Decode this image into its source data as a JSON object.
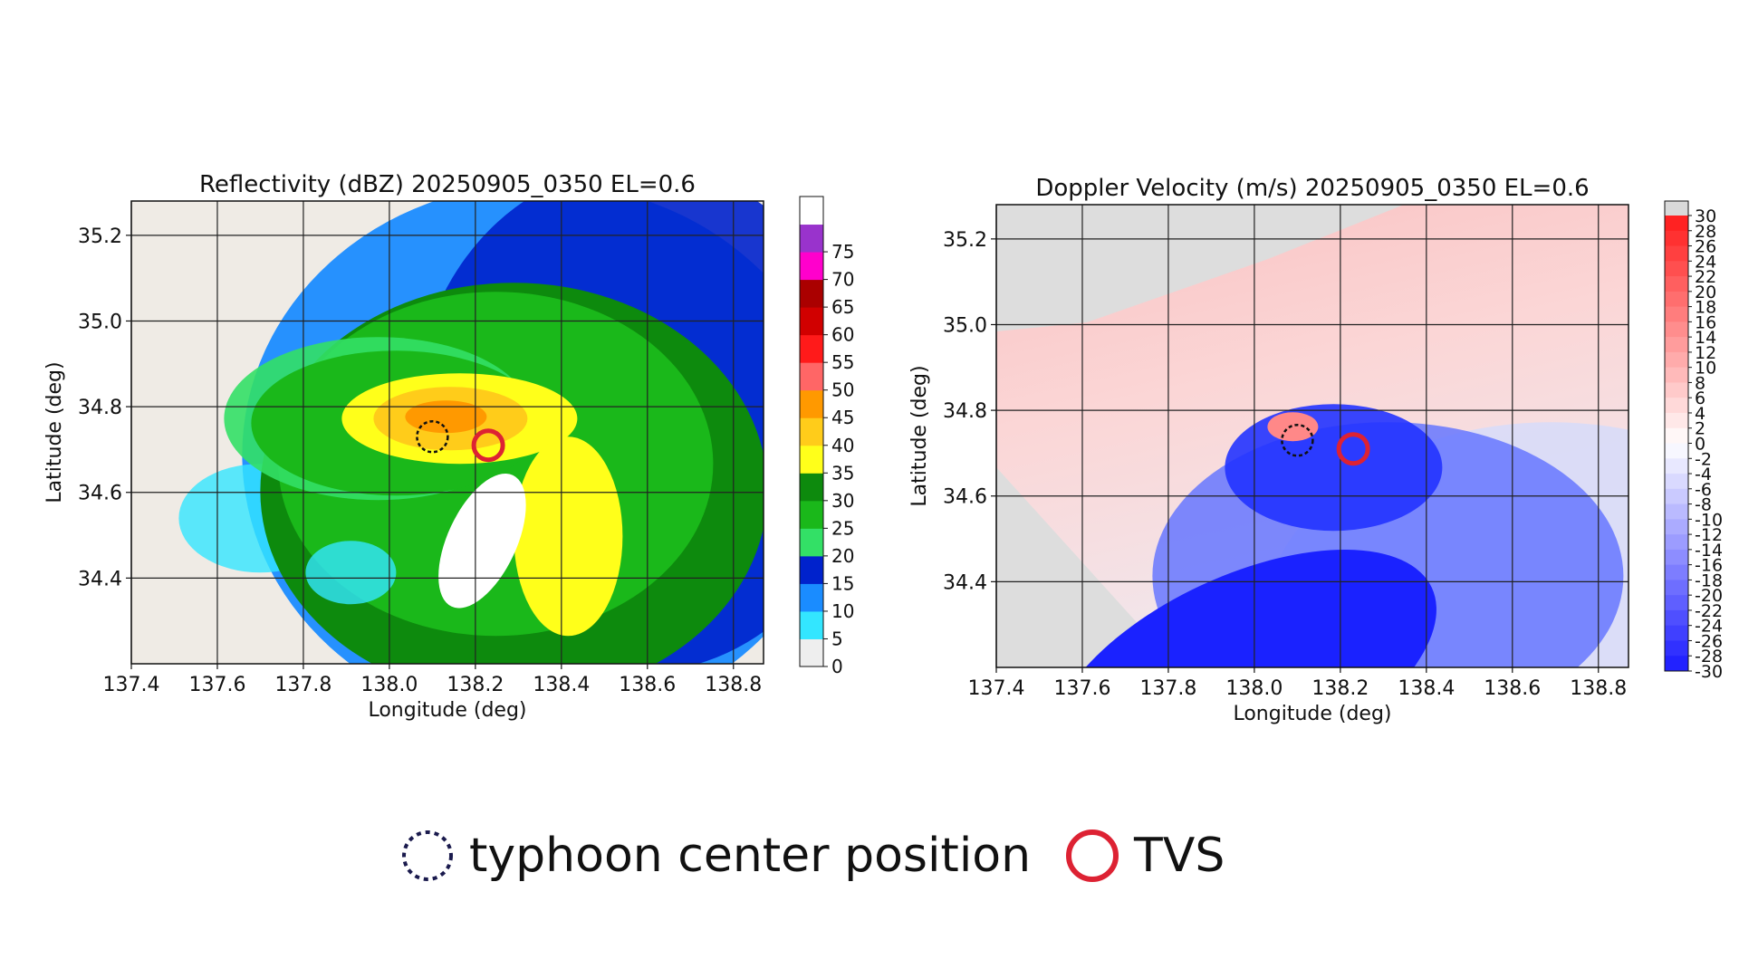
{
  "chart_data": [
    {
      "type": "heatmap",
      "title": "Reflectivity (dBZ) 20250905_0350 EL=0.6",
      "xlabel": "Longitude (deg)",
      "ylabel": "Latitude (deg)",
      "xlim": [
        137.4,
        138.87
      ],
      "ylim": [
        34.2,
        35.28
      ],
      "xticks": [
        137.4,
        137.6,
        137.8,
        138.0,
        138.2,
        138.4,
        138.6,
        138.8
      ],
      "xtick_labels": [
        "137.4",
        "137.6",
        "137.8",
        "138.0",
        "138.2",
        "138.4",
        "138.6",
        "138.8"
      ],
      "yticks": [
        34.4,
        34.6,
        34.8,
        35.0,
        35.2
      ],
      "ytick_labels": [
        "34.4",
        "34.6",
        "34.8",
        "35.0",
        "35.2"
      ],
      "grid": true,
      "colorbar": {
        "labels": [
          "0",
          "5",
          "10",
          "15",
          "20",
          "25",
          "30",
          "35",
          "40",
          "45",
          "50",
          "55",
          "60",
          "65",
          "70",
          "75"
        ],
        "bin_colors": [
          "#eeeeee",
          "#33e6ff",
          "#1a8cff",
          "#0022cc",
          "#33e066",
          "#1ab81a",
          "#0d8a0d",
          "#ffff1a",
          "#ffcc1a",
          "#ff9900",
          "#ff6666",
          "#ff1a1a",
          "#d10000",
          "#aa0000",
          "#ff00cc",
          "#9933cc",
          "#ffffff"
        ]
      },
      "markers": [
        {
          "name": "typhoon center position",
          "lon": 138.1,
          "lat": 34.73
        },
        {
          "name": "TVS",
          "lon": 138.23,
          "lat": 34.71
        }
      ]
    },
    {
      "type": "heatmap",
      "title": "Doppler Velocity (m/s) 20250905_0350 EL=0.6",
      "xlabel": "Longitude (deg)",
      "ylabel": "Latitude (deg)",
      "xlim": [
        137.4,
        138.87
      ],
      "ylim": [
        34.2,
        35.28
      ],
      "xticks": [
        137.4,
        137.6,
        137.8,
        138.0,
        138.2,
        138.4,
        138.6,
        138.8
      ],
      "xtick_labels": [
        "137.4",
        "137.6",
        "137.8",
        "138.0",
        "138.2",
        "138.4",
        "138.6",
        "138.8"
      ],
      "yticks": [
        34.4,
        34.6,
        34.8,
        35.0,
        35.2
      ],
      "ytick_labels": [
        "34.4",
        "34.6",
        "34.8",
        "35.0",
        "35.2"
      ],
      "grid": true,
      "colorbar": {
        "min": -30,
        "max": 30,
        "labels": [
          "30",
          "28",
          "26",
          "24",
          "22",
          "20",
          "18",
          "16",
          "14",
          "12",
          "10",
          "8",
          "6",
          "4",
          "2",
          "0",
          "-2",
          "-4",
          "-6",
          "-8",
          "-10",
          "-12",
          "-14",
          "-16",
          "-18",
          "-20",
          "-22",
          "-24",
          "-26",
          "-28",
          "-30"
        ],
        "color_low": "#1a1aff",
        "color_mid": "#ffffff",
        "color_high": "#ff1a1a",
        "color_over": "#d9d9d9"
      },
      "markers": [
        {
          "name": "typhoon center position",
          "lon": 138.1,
          "lat": 34.73
        },
        {
          "name": "TVS",
          "lon": 138.23,
          "lat": 34.71
        }
      ]
    }
  ],
  "legend": {
    "center_label": "typhoon center position",
    "tvs_label": "TVS",
    "center_color": "#1a1a4d",
    "tvs_color": "#dd2233"
  }
}
